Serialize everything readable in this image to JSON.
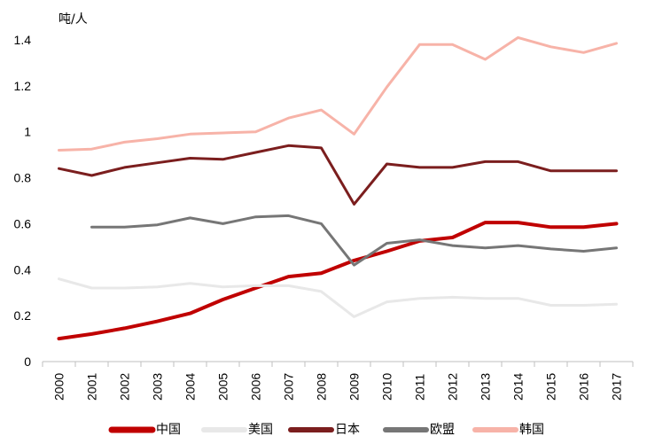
{
  "chart_data": {
    "type": "line",
    "title": "",
    "xlabel": "",
    "ylabel": "吨/人",
    "ylim": [
      0,
      1.4
    ],
    "yticks": [
      "0",
      "0.2",
      "0.4",
      "0.6",
      "0.8",
      "1",
      "1.2",
      "1.4"
    ],
    "categories": [
      "2000",
      "2001",
      "2002",
      "2003",
      "2004",
      "2005",
      "2006",
      "2007",
      "2008",
      "2009",
      "2010",
      "2011",
      "2012",
      "2013",
      "2014",
      "2015",
      "2016",
      "2017"
    ],
    "grid": false,
    "legend_position": "bottom",
    "series": [
      {
        "name": "中国",
        "color": "#c00000",
        "width": 4,
        "values": [
          0.1,
          0.12,
          0.145,
          0.175,
          0.21,
          0.27,
          0.32,
          0.37,
          0.385,
          0.44,
          0.48,
          0.525,
          0.54,
          0.605,
          0.605,
          0.585,
          0.585,
          0.6
        ]
      },
      {
        "name": "美国",
        "color": "#e8e8e8",
        "width": 3,
        "values": [
          0.36,
          0.32,
          0.32,
          0.325,
          0.34,
          0.325,
          0.33,
          0.33,
          0.305,
          0.195,
          0.26,
          0.275,
          0.28,
          0.275,
          0.275,
          0.245,
          0.245,
          0.25
        ]
      },
      {
        "name": "日本",
        "color": "#7b1e1e",
        "width": 3,
        "values": [
          0.84,
          0.81,
          0.845,
          0.865,
          0.885,
          0.88,
          0.91,
          0.94,
          0.93,
          0.685,
          0.86,
          0.845,
          0.845,
          0.87,
          0.87,
          0.83,
          0.83,
          0.83
        ]
      },
      {
        "name": "欧盟",
        "color": "#767676",
        "width": 3,
        "values": [
          null,
          0.585,
          0.585,
          0.595,
          0.625,
          0.6,
          0.63,
          0.635,
          0.6,
          0.42,
          0.515,
          0.53,
          0.505,
          0.495,
          0.505,
          0.49,
          0.48,
          0.495
        ]
      },
      {
        "name": "韩国",
        "color": "#f7b3a8",
        "width": 3,
        "values": [
          0.92,
          0.925,
          0.955,
          0.97,
          0.99,
          0.995,
          1.0,
          1.06,
          1.095,
          0.99,
          1.195,
          1.38,
          1.38,
          1.315,
          1.41,
          1.37,
          1.345,
          1.385
        ]
      }
    ]
  }
}
